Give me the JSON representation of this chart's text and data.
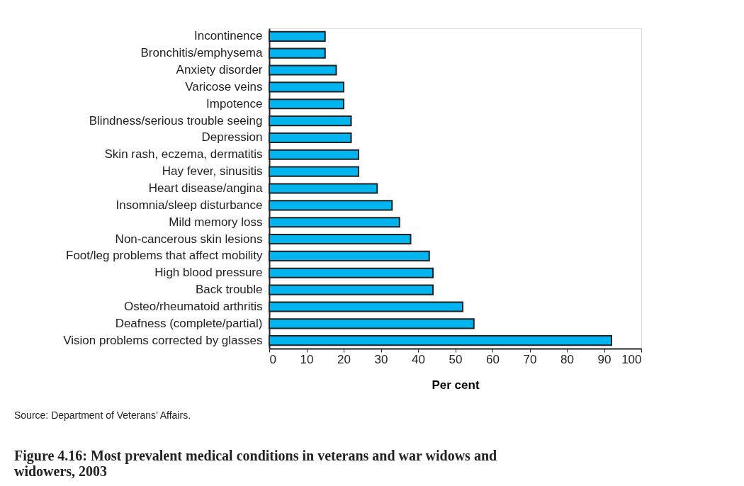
{
  "chart_data": {
    "type": "bar",
    "orientation": "horizontal",
    "title": "Figure 4.16: Most prevalent medical conditions in veterans and war widows and widowers, 2003",
    "xlabel": "Per cent",
    "categories": [
      "Incontinence",
      "Bronchitis/emphysema",
      "Anxiety disorder",
      "Varicose veins",
      "Impotence",
      "Blindness/serious trouble seeing",
      "Depression",
      "Skin rash, eczema, dermatitis",
      "Hay fever, sinusitis",
      "Heart disease/angina",
      "Insomnia/sleep disturbance",
      "Mild memory loss",
      "Non-cancerous skin lesions",
      "Foot/leg problems that affect mobility",
      "High blood pressure",
      "Back trouble",
      "Osteo/rheumatoid arthritis",
      "Deafness (complete/partial)",
      "Vision problems corrected by glasses"
    ],
    "values": [
      15,
      15,
      18,
      20,
      20,
      22,
      22,
      24,
      24,
      29,
      33,
      35,
      38,
      43,
      44,
      44,
      52,
      55,
      92
    ],
    "color": "#00b5ef",
    "xlim": [
      0,
      100
    ],
    "xticks": [
      0,
      10,
      20,
      30,
      40,
      50,
      60,
      70,
      80,
      90,
      100
    ],
    "grid": false,
    "annotations": [
      "Source: Department of Veterans’ Affairs."
    ]
  }
}
